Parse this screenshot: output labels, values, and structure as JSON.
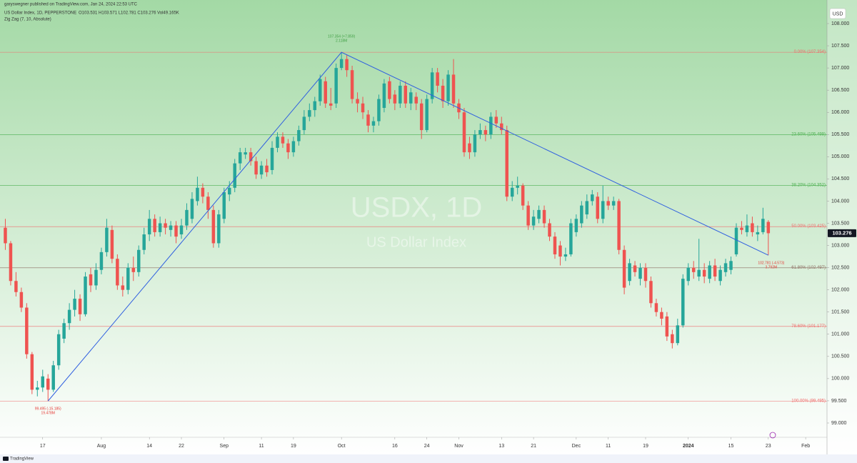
{
  "header": {
    "published": "garyswegner published on TradingView.com, Jan 24, 2024 22:53 UTC",
    "symbol": "US Dollar Index, 1D, PEPPERSTONE",
    "ohlc": "O103.531 H103.571 L102.781 C103.276 Vol49.165K",
    "indicator": "Zig Zag (7, 10, Absolute)",
    "currency": "USD",
    "watermark": "USDX, 1D",
    "watermark_sub": "US Dollar Index",
    "brand": "TradingView"
  },
  "chart_data": {
    "type": "candlestick",
    "up_color": "#26a69a",
    "down_color": "#ef5350",
    "xlim": [
      -1,
      154
    ],
    "xticks": [
      {
        "value": 7,
        "label": "17"
      },
      {
        "value": 18,
        "label": "Aug"
      },
      {
        "value": 27,
        "label": "14"
      },
      {
        "value": 33,
        "label": "22"
      },
      {
        "value": 41,
        "label": "Sep"
      },
      {
        "value": 48,
        "label": "11"
      },
      {
        "value": 54,
        "label": "19"
      },
      {
        "value": 63,
        "label": "Oct"
      },
      {
        "value": 73,
        "label": "16"
      },
      {
        "value": 79,
        "label": "24"
      },
      {
        "value": 85,
        "label": "Nov"
      },
      {
        "value": 93,
        "label": "13"
      },
      {
        "value": 99,
        "label": "21"
      },
      {
        "value": 107,
        "label": "Dec"
      },
      {
        "value": 113,
        "label": "11"
      },
      {
        "value": 120,
        "label": "19"
      },
      {
        "value": 128,
        "label": "2024"
      },
      {
        "value": 136,
        "label": "15"
      },
      {
        "value": 143,
        "label": "23"
      },
      {
        "value": 150,
        "label": "Feb"
      }
    ],
    "ylim": [
      98.678,
      108.338
    ],
    "yticks": [
      {
        "value": 99,
        "label": "99.000"
      },
      {
        "value": 99.5,
        "label": "99.500"
      },
      {
        "value": 100,
        "label": "100.000"
      },
      {
        "value": 100.5,
        "label": "100.500"
      },
      {
        "value": 101,
        "label": "101.000"
      },
      {
        "value": 101.5,
        "label": "101.500"
      },
      {
        "value": 102,
        "label": "102.000"
      },
      {
        "value": 102.5,
        "label": "102.500"
      },
      {
        "value": 103,
        "label": "103.000"
      },
      {
        "value": 103.5,
        "label": "103.500"
      },
      {
        "value": 104,
        "label": "104.000"
      },
      {
        "value": 104.5,
        "label": "104.500"
      },
      {
        "value": 105,
        "label": "105.000"
      },
      {
        "value": 105.5,
        "label": "105.500"
      },
      {
        "value": 106,
        "label": "106.000"
      },
      {
        "value": 106.5,
        "label": "106.500"
      },
      {
        "value": 107,
        "label": "107.000"
      },
      {
        "value": 107.5,
        "label": "107.500"
      },
      {
        "value": 108,
        "label": "108.000"
      }
    ],
    "open": [
      103.4,
      103.05,
      102.2,
      101.95,
      101.6,
      100.55,
      99.75,
      99.8,
      100,
      99.75,
      100.3,
      100.9,
      101.25,
      101.55,
      101.8,
      101.45,
      102.35,
      102.1,
      102.45,
      102.85,
      103.35,
      102.7,
      102.1,
      102,
      102.5,
      102.4,
      102.9,
      103.25,
      103.6,
      103.3,
      103.5,
      103.35,
      103.45,
      103.25,
      103.45,
      103.6,
      104,
      104.3,
      104.1,
      103.8,
      103.05,
      103.6,
      104.15,
      104.3,
      104.85,
      105.05,
      105.1,
      104.9,
      104.6,
      104.8,
      104.7,
      105.2,
      105.45,
      105.3,
      105.1,
      105.35,
      105.6,
      105.9,
      106.05,
      106.25,
      106.7,
      106.2,
      106.2,
      107,
      107.2,
      106.95,
      106.3,
      106.2,
      105.95,
      105.7,
      105.8,
      106.1,
      106.7,
      106.4,
      106.2,
      106.6,
      106.2,
      106.35,
      106.2,
      105.6,
      106.3,
      106.9,
      106.6,
      106.25,
      106.85,
      106.2,
      106,
      105.3,
      105.1,
      105.5,
      105.6,
      105.5,
      105.9,
      105.75,
      105.6,
      104.1,
      104.3,
      104.35,
      103.9,
      103.45,
      103.6,
      103.8,
      103.5,
      103.2,
      103,
      102.75,
      102.8,
      103.3,
      103.5,
      103.7,
      104,
      104.1,
      103.6,
      104,
      103.9,
      104,
      102.9,
      102.2,
      102.55,
      102.25,
      102.5,
      102.2,
      101.7,
      101.5,
      101.4,
      101,
      100.8,
      101.2,
      102.2,
      102.5,
      102.3,
      102.45,
      102.25,
      102.55,
      102.2,
      102.4,
      102.45,
      102.8,
      103.4,
      103.3,
      103.5,
      103.25,
      103.3,
      103.531
    ],
    "high": [
      103.6,
      103.1,
      102.4,
      102.05,
      101.7,
      100.6,
      99.95,
      100.2,
      100.1,
      100.4,
      101.1,
      101.35,
      101.7,
      102,
      101.9,
      102.4,
      102.5,
      102.6,
      102.95,
      103.6,
      103.45,
      102.8,
      102.3,
      102.6,
      102.75,
      103,
      103.4,
      103.8,
      103.7,
      103.65,
      103.6,
      103.55,
      103.55,
      103.6,
      103.95,
      104.2,
      104.55,
      104.4,
      104.2,
      103.9,
      103.8,
      104.3,
      104.45,
      104.95,
      105.2,
      105.2,
      105.2,
      105,
      104.9,
      104.95,
      105.35,
      105.55,
      105.55,
      105.4,
      105.45,
      105.7,
      106.05,
      106.2,
      106.35,
      106.85,
      106.8,
      106.55,
      107.1,
      107.354,
      107.3,
      107.05,
      106.45,
      106.35,
      106.05,
      105.9,
      106.4,
      106.75,
      106.8,
      106.5,
      106.7,
      106.7,
      106.55,
      106.45,
      106.3,
      106.4,
      107,
      107,
      106.75,
      106.95,
      107.2,
      106.3,
      106.1,
      105.45,
      105.6,
      105.75,
      105.7,
      106,
      106.05,
      105.9,
      105.7,
      104.45,
      104.55,
      104.4,
      104,
      103.8,
      103.9,
      103.9,
      103.6,
      103.3,
      103.1,
      102.95,
      103.6,
      103.7,
      104,
      104.15,
      104.25,
      104.2,
      104.35,
      104.1,
      104.1,
      104.05,
      103,
      102.7,
      102.65,
      102.6,
      102.6,
      102.3,
      101.8,
      101.6,
      101.5,
      101.1,
      101.35,
      102.35,
      102.6,
      102.65,
      103.15,
      102.6,
      102.65,
      102.7,
      102.55,
      102.7,
      102.75,
      103.5,
      103.55,
      103.7,
      103.65,
      103.45,
      103.85,
      103.571
    ],
    "low": [
      102.9,
      102.1,
      101.85,
      101.5,
      100.45,
      99.65,
      99.6,
      99.7,
      99.495,
      99.7,
      100.2,
      100.8,
      101.1,
      101.4,
      101.3,
      101.4,
      101.95,
      102,
      102.35,
      102.75,
      102.6,
      102,
      101.85,
      101.9,
      102.2,
      102.3,
      102.8,
      103.1,
      103.2,
      103.2,
      103.25,
      103.2,
      103.05,
      103.15,
      103.35,
      103.5,
      103.9,
      103.95,
      103.6,
      102.95,
      102.95,
      103.5,
      104,
      104.2,
      104.7,
      104.95,
      104.8,
      104.5,
      104.5,
      104.55,
      104.6,
      105.1,
      105.2,
      104.95,
      105,
      105.25,
      105.5,
      105.8,
      105.9,
      106.15,
      106.1,
      106.05,
      106.1,
      106.95,
      106.8,
      106.2,
      106,
      105.85,
      105.55,
      105.55,
      105.7,
      106,
      106.2,
      106.05,
      106.1,
      106.1,
      106.05,
      106.05,
      105.4,
      105.55,
      106.2,
      106.45,
      106.1,
      106.15,
      106.1,
      105.85,
      105,
      104.95,
      105,
      105.4,
      105.35,
      105.4,
      105.65,
      105.5,
      104,
      104,
      104.15,
      103.8,
      103.35,
      103.35,
      103.5,
      103.4,
      103.1,
      102.7,
      102.55,
      102.65,
      102.75,
      103.2,
      103.4,
      103.6,
      103.9,
      103.5,
      103.5,
      103.8,
      103.8,
      102.8,
      101.9,
      102.1,
      102.3,
      102.1,
      102.05,
      101.6,
      101.4,
      101.2,
      100.85,
      100.68,
      100.75,
      101.15,
      102.1,
      102.25,
      102.2,
      102.15,
      102.15,
      102.2,
      102.1,
      102.3,
      102.35,
      102.75,
      103.25,
      103.2,
      103.2,
      103.1,
      103.25,
      102.781
    ],
    "close": [
      103.05,
      102.2,
      101.95,
      101.6,
      100.55,
      99.75,
      99.8,
      100.05,
      99.75,
      100.3,
      101,
      101.25,
      101.55,
      101.8,
      101.45,
      102.3,
      102.1,
      102.45,
      102.85,
      103.4,
      102.7,
      102.1,
      102,
      102.5,
      102.4,
      102.9,
      103.25,
      103.6,
      103.3,
      103.5,
      103.4,
      103.45,
      103.2,
      103.45,
      103.8,
      104.05,
      104.3,
      104.1,
      103.8,
      103.05,
      103.7,
      104.2,
      104.3,
      104.85,
      105.1,
      105.1,
      104.9,
      104.6,
      104.8,
      104.65,
      105.2,
      105.45,
      105.3,
      105.1,
      105.35,
      105.6,
      105.9,
      106.05,
      106.25,
      106.75,
      106.2,
      106.15,
      107,
      107.2,
      106.95,
      106.3,
      106.2,
      106,
      105.7,
      105.8,
      106.3,
      106.65,
      106.3,
      106.2,
      106.6,
      106.2,
      106.45,
      106.2,
      105.6,
      106.3,
      106.9,
      106.6,
      106.25,
      106.85,
      106.2,
      106,
      105.1,
      105.1,
      105.5,
      105.6,
      105.5,
      105.9,
      105.75,
      105.6,
      104.1,
      104.3,
      104.35,
      103.9,
      103.45,
      103.65,
      103.8,
      103.5,
      103.2,
      102.8,
      102.75,
      102.8,
      103.5,
      103.6,
      103.9,
      104,
      104.15,
      103.6,
      104,
      103.9,
      104,
      102.9,
      102.05,
      102.6,
      102.4,
      102.5,
      102.2,
      101.7,
      101.5,
      101.35,
      100.95,
      100.8,
      101.2,
      102.25,
      102.5,
      102.4,
      102.45,
      102.3,
      102.55,
      102.3,
      102.45,
      102.6,
      102.65,
      103.4,
      103.35,
      103.45,
      103.3,
      103.3,
      103.6,
      103.276
    ],
    "levels": [
      {
        "label": "0.00% (107.354)",
        "value": 107.354,
        "color": "#f06c6c"
      },
      {
        "label": "23.60% (105.499)",
        "value": 105.499,
        "color": "#4caf50"
      },
      {
        "label": "38.20% (104.352)",
        "value": 104.352,
        "color": "#4caf50"
      },
      {
        "label": "50.00% (103.425)",
        "value": 103.425,
        "color": "#f06c6c"
      },
      {
        "label": "61.80% (102.497)",
        "value": 102.497,
        "color": "#8d6e63"
      },
      {
        "label": "78.60% (101.177)",
        "value": 101.177,
        "color": "#f06c6c"
      },
      {
        "label": "100.00% (99.495)",
        "value": 99.495,
        "color": "#f06c6c"
      }
    ],
    "zigzag": {
      "color": "#2f5fe0",
      "points": [
        {
          "x": 8,
          "y": 99.495,
          "label": "99.495 (-15.185)",
          "sub": "19.478M",
          "color": "#e53935"
        },
        {
          "x": 63,
          "y": 107.354,
          "label": "107.354 (+7.859)",
          "sub": "2.118M",
          "color": "#43a047"
        },
        {
          "x": 143,
          "y": 102.781,
          "label": "102.781 (-4.573)",
          "sub": "3.792M",
          "color": "#e53935"
        }
      ]
    }
  }
}
